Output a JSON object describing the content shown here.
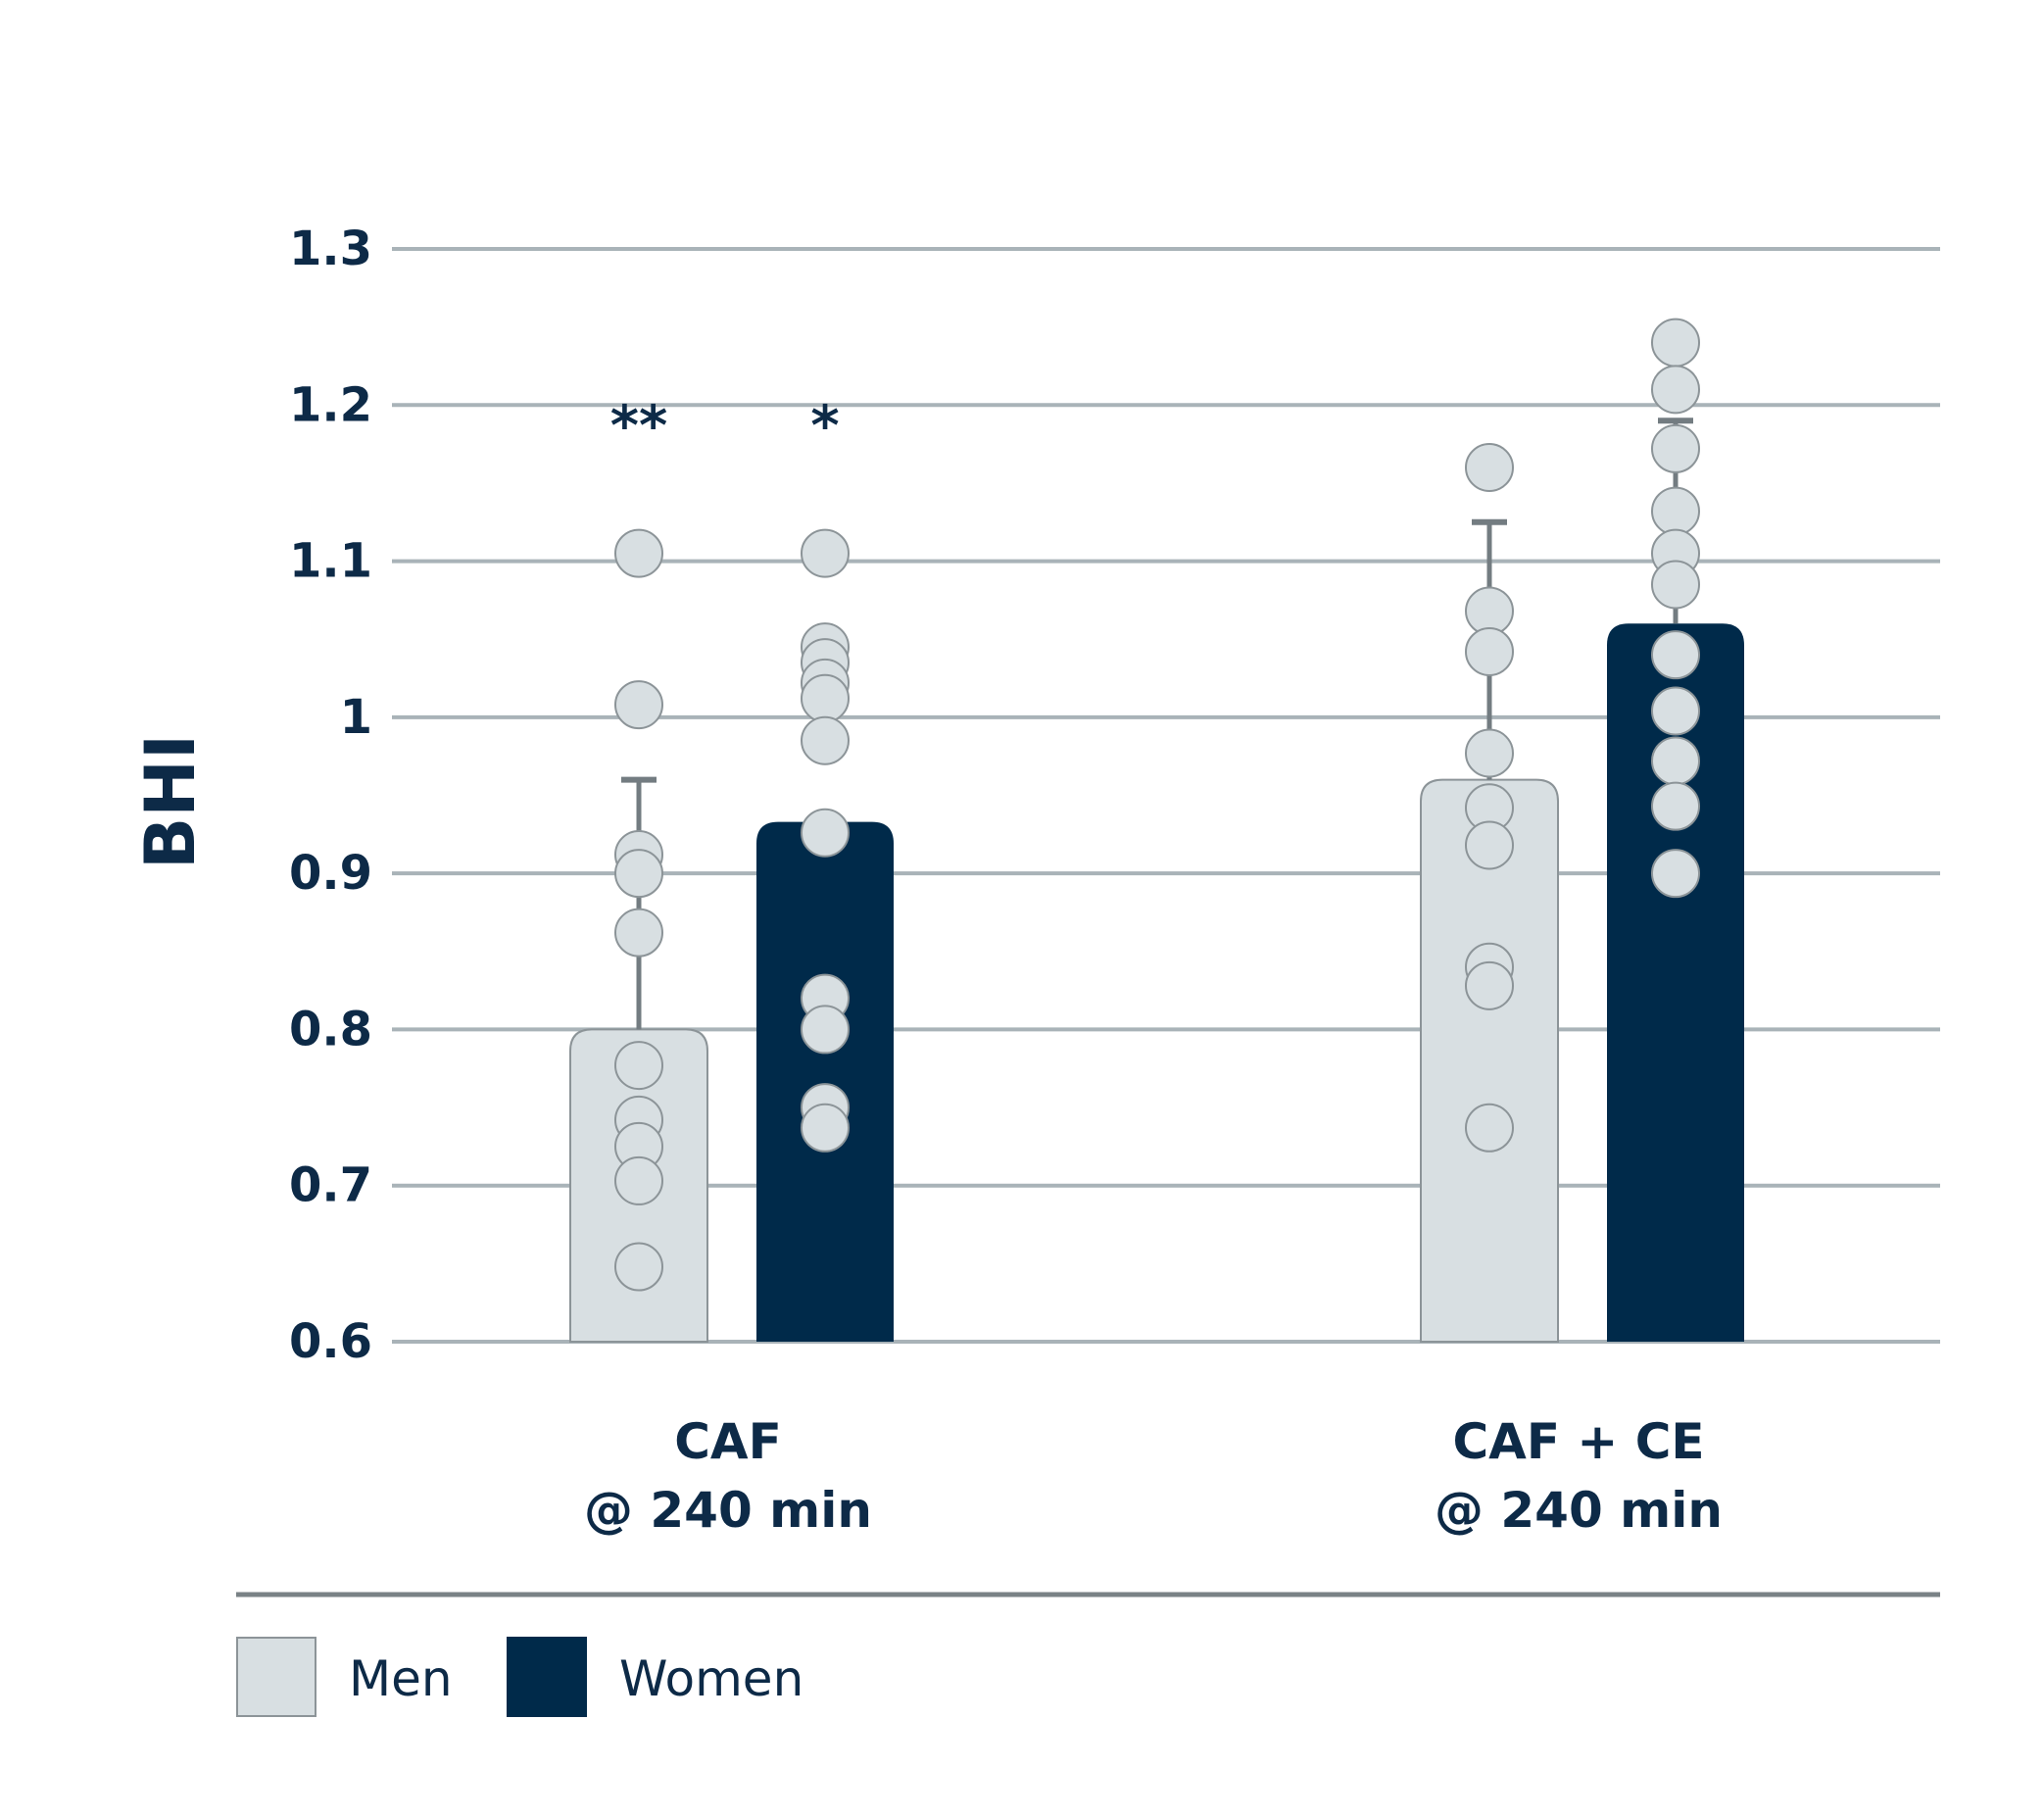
{
  "chart_data": {
    "type": "bar",
    "ylabel": "BHI",
    "ylim": [
      0.6,
      1.3
    ],
    "yticks": [
      {
        "v": 0.6,
        "label": "0.6"
      },
      {
        "v": 0.7,
        "label": "0.7"
      },
      {
        "v": 0.8,
        "label": "0.8"
      },
      {
        "v": 0.9,
        "label": "0.9"
      },
      {
        "v": 1.0,
        "label": "1"
      },
      {
        "v": 1.1,
        "label": "1.1"
      },
      {
        "v": 1.2,
        "label": "1.2"
      },
      {
        "v": 1.3,
        "label": "1.3"
      }
    ],
    "grid": true,
    "legend_position": "bottom-left",
    "categories": [
      {
        "line1": "CAF",
        "line2": "@ 240 min"
      },
      {
        "line1": "CAF + CE",
        "line2": "@ 240 min"
      }
    ],
    "series": [
      {
        "name": "Men",
        "color": "#d8dfe2",
        "values": [
          0.8,
          0.96
        ],
        "error_upper": [
          0.96,
          1.125
        ],
        "significance": [
          "**",
          ""
        ],
        "points": [
          [
            1.105,
            1.008,
            0.912,
            0.9,
            0.862,
            0.777,
            0.742,
            0.725,
            0.703,
            0.648
          ],
          [
            1.16,
            1.068,
            1.042,
            0.977,
            0.942,
            0.918,
            0.84,
            0.828,
            0.737
          ]
        ]
      },
      {
        "name": "Women",
        "color": "#002a4a",
        "values": [
          0.933,
          1.06
        ],
        "error_upper": [
          0.933,
          1.19
        ],
        "significance": [
          "*",
          ""
        ],
        "points": [
          [
            1.105,
            1.045,
            1.035,
            1.022,
            1.012,
            0.985,
            0.926,
            0.82,
            0.8,
            0.75,
            0.737
          ],
          [
            1.24,
            1.21,
            1.172,
            1.132,
            1.105,
            1.085,
            1.04,
            1.004,
            0.972,
            0.943,
            0.9
          ]
        ]
      }
    ]
  },
  "colors": {
    "axis_text": "#0d2a47",
    "grid": "#a9b3b8",
    "error_bar": "#737c81",
    "point_fill": "#d8dfe2",
    "point_stroke": "#8c9498",
    "divider": "#7a8286"
  }
}
